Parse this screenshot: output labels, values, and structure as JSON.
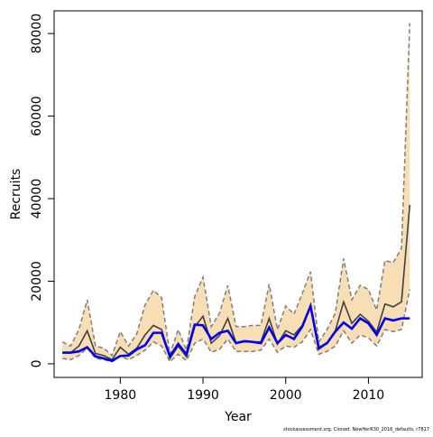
{
  "chart_data": {
    "type": "line",
    "xlabel": "Year",
    "ylabel": "Recruits",
    "xlim": [
      1972,
      2016.5
    ],
    "ylim": [
      -3300,
      85500
    ],
    "x_ticks": [
      1980,
      1990,
      2000,
      2010
    ],
    "y_ticks": [
      0,
      20000,
      40000,
      60000,
      80000
    ],
    "footnote": "stockassessment.org, Cloned: NewHerR30_2016_defaults, r7817",
    "colors": {
      "band": "#f7deb4",
      "bound": "#7f7f7f",
      "estimate": "#404040",
      "comparison": "#0000ee"
    },
    "x": [
      1973,
      1974,
      1975,
      1976,
      1977,
      1978,
      1979,
      1980,
      1981,
      1982,
      1983,
      1984,
      1985,
      1986,
      1987,
      1988,
      1989,
      1990,
      1991,
      1992,
      1993,
      1994,
      1995,
      1996,
      1997,
      1998,
      1999,
      2000,
      2001,
      2002,
      2003,
      2004,
      2005,
      2006,
      2007,
      2008,
      2009,
      2010,
      2011,
      2012,
      2013,
      2014,
      2015
    ],
    "series": [
      {
        "name": "",
        "role": "upper",
        "values": [
          5300,
          4300,
          8300,
          15500,
          4300,
          3800,
          2000,
          7800,
          4300,
          7300,
          14300,
          17800,
          16000,
          2300,
          8300,
          3300,
          16300,
          21000,
          9000,
          12300,
          19000,
          9000,
          9000,
          9300,
          9300,
          19300,
          8300,
          14000,
          12000,
          17000,
          22300,
          5300,
          8300,
          12300,
          25500,
          15500,
          19000,
          18000,
          13000,
          25000,
          24500,
          28000,
          82500
        ]
      },
      {
        "name": "",
        "role": "estimate",
        "values": [
          2700,
          2700,
          4300,
          8000,
          2500,
          2000,
          1000,
          4000,
          2300,
          3800,
          7000,
          9300,
          8300,
          1300,
          4300,
          1700,
          9000,
          11500,
          5000,
          6800,
          11000,
          5000,
          5300,
          5300,
          5300,
          11000,
          4800,
          8000,
          7000,
          9300,
          13800,
          3500,
          5000,
          8000,
          15000,
          9800,
          12000,
          10300,
          7700,
          14500,
          13800,
          15000,
          38500
        ]
      },
      {
        "name": "",
        "role": "lower",
        "values": [
          1300,
          1000,
          2000,
          3800,
          1300,
          1000,
          500,
          1800,
          1000,
          2000,
          3300,
          5300,
          4300,
          500,
          2300,
          800,
          5000,
          6000,
          2800,
          3500,
          6000,
          3000,
          3000,
          3000,
          3300,
          6000,
          2800,
          4300,
          4000,
          5300,
          8300,
          2300,
          3000,
          4300,
          8000,
          5000,
          7000,
          6300,
          4300,
          8300,
          7800,
          8300,
          18000
        ]
      },
      {
        "name": "",
        "role": "comparison",
        "values": [
          2700,
          2700,
          3000,
          4000,
          1800,
          1300,
          700,
          1900,
          2000,
          3500,
          4500,
          7500,
          7500,
          1800,
          4800,
          2300,
          9500,
          9300,
          6000,
          7500,
          8000,
          5000,
          5500,
          5300,
          5000,
          8800,
          5000,
          7000,
          6000,
          9000,
          14000,
          3800,
          5000,
          7800,
          10000,
          8500,
          11000,
          9800,
          7000,
          11000,
          10500,
          11000,
          11000
        ]
      }
    ]
  }
}
